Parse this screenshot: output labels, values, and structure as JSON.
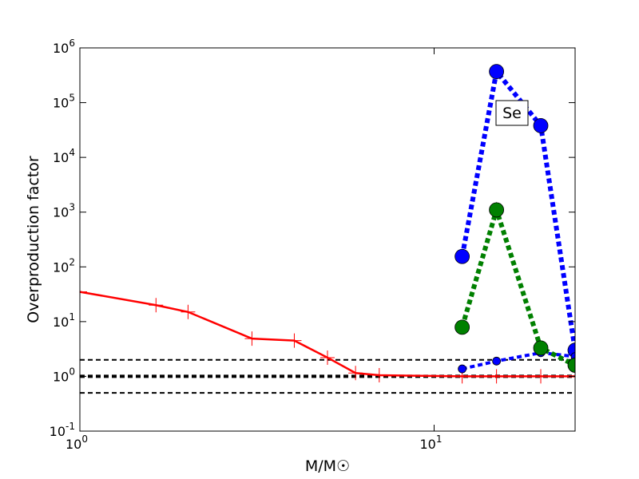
{
  "chart_data": {
    "type": "line",
    "x_label": "M/M☉",
    "y_label": "Overproduction factor",
    "annotation": "Se",
    "xscale": "log",
    "yscale": "log",
    "xlim": [
      1,
      25
    ],
    "ylim": [
      0.1,
      1000000
    ],
    "xticks": [
      {
        "value": 1,
        "label": "10^0"
      },
      {
        "value": 10,
        "label": "10^1"
      }
    ],
    "yticks": [
      {
        "value": 0.1,
        "label": "10^-1"
      },
      {
        "value": 1,
        "label": "10^0"
      },
      {
        "value": 10,
        "label": "10^1"
      },
      {
        "value": 100,
        "label": "10^2"
      },
      {
        "value": 1000,
        "label": "10^3"
      },
      {
        "value": 10000,
        "label": "10^4"
      },
      {
        "value": 100000,
        "label": "10^5"
      },
      {
        "value": 1000000,
        "label": "10^6"
      }
    ],
    "hlines": [
      {
        "value": 2,
        "linewidth": 2
      },
      {
        "value": 1,
        "linewidth": 4
      },
      {
        "value": 0.5,
        "linewidth": 2
      }
    ],
    "hline_color": "#000000",
    "series": [
      {
        "color": "#ff0000",
        "linestyle": "solid",
        "linewidth": 2.5,
        "marker": "+",
        "markersize": 9,
        "x": [
          1,
          1.64,
          2.02,
          3.06,
          4.03,
          5,
          6,
          7,
          12,
          15,
          20,
          25
        ],
        "values": [
          35,
          20,
          15,
          4.9,
          4.5,
          2.2,
          1.15,
          1.05,
          1.0,
          1.0,
          1.0,
          1.0
        ]
      },
      {
        "color": "#0000ff",
        "linestyle": "dotted",
        "linewidth": 6,
        "marker": "o",
        "markersize": 9,
        "x": [
          12,
          15,
          20,
          25
        ],
        "values": [
          155,
          370000,
          38000,
          3.0
        ]
      },
      {
        "color": "#0000ff",
        "linestyle": "dotted",
        "linewidth": 4,
        "marker": "o",
        "markersize": 5,
        "x": [
          12,
          15,
          20,
          25
        ],
        "values": [
          1.37,
          1.9,
          2.7,
          2.3
        ]
      },
      {
        "color": "#008000",
        "linestyle": "dotted",
        "linewidth": 6,
        "marker": "o",
        "markersize": 9,
        "x": [
          12,
          15,
          20,
          25
        ],
        "values": [
          7.9,
          1100,
          3.3,
          1.6
        ]
      }
    ]
  }
}
